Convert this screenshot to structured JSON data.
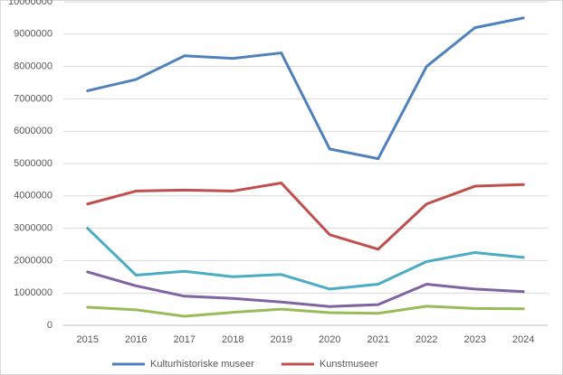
{
  "chart_data": {
    "type": "line",
    "categories": [
      "2015",
      "2016",
      "2017",
      "2018",
      "2019",
      "2020",
      "2021",
      "2022",
      "2023",
      "2024"
    ],
    "series": [
      {
        "name": "Kulturhistoriske museer",
        "color": "#4f81bd",
        "values": [
          7250000,
          7600000,
          8330000,
          8250000,
          8420000,
          5450000,
          5150000,
          8000000,
          9200000,
          9500000
        ]
      },
      {
        "name": "Kunstmuseer",
        "color": "#c0504d",
        "values": [
          3750000,
          4150000,
          4180000,
          4150000,
          4400000,
          2800000,
          2350000,
          3750000,
          4300000,
          4350000
        ]
      },
      {
        "color": "#4bacc6",
        "values": [
          3000000,
          1550000,
          1670000,
          1500000,
          1570000,
          1120000,
          1270000,
          1970000,
          2250000,
          2100000
        ]
      },
      {
        "color": "#8064a2",
        "values": [
          1650000,
          1220000,
          900000,
          830000,
          720000,
          580000,
          640000,
          1270000,
          1120000,
          1040000
        ]
      },
      {
        "color": "#9bbb59",
        "values": [
          560000,
          480000,
          280000,
          400000,
          500000,
          390000,
          370000,
          590000,
          520000,
          510000
        ]
      }
    ],
    "ylim": [
      0,
      10000000
    ],
    "yticks": [
      0,
      1000000,
      2000000,
      3000000,
      4000000,
      5000000,
      6000000,
      7000000,
      8000000,
      9000000,
      10000000
    ],
    "grid": true,
    "legend": "bottom"
  }
}
